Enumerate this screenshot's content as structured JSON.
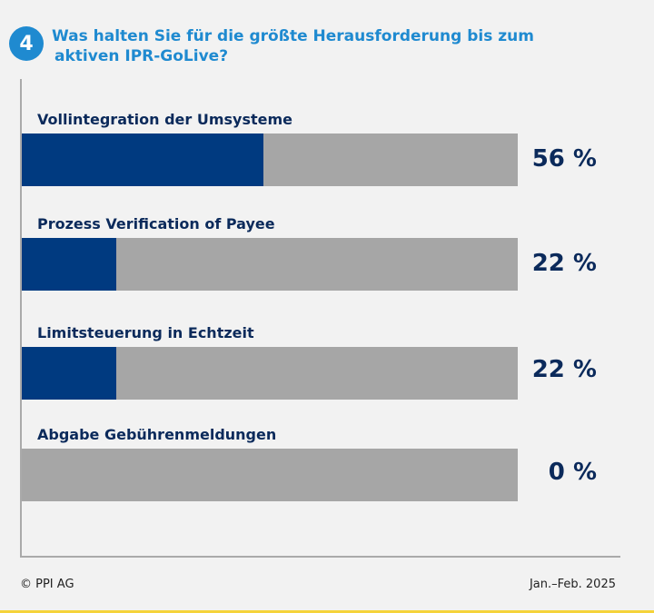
{
  "header": {
    "number": "4",
    "question_line1": "Was halten Sie für die größte Herausforderung bis zum",
    "question_line2": "aktiven IPR-GoLive?"
  },
  "chart_data": {
    "type": "bar",
    "orientation": "horizontal",
    "categories": [
      "Vollintegration der Umsysteme",
      "Prozess Verification of Payee",
      "Limitsteuerung in Echtzeit",
      "Abgabe Gebührenmeldungen"
    ],
    "values": [
      56,
      22,
      22,
      0
    ],
    "value_labels": [
      "56 %",
      "22 %",
      "22 %",
      "0 %"
    ],
    "xlim": [
      0,
      115
    ],
    "colors": {
      "fill": "#003a80",
      "track": "#a6a6a6",
      "title": "#1f8ad0",
      "label": "#0b2a5b"
    }
  },
  "footer": {
    "copyright": "© PPI AG",
    "period": "Jan.–Feb. 2025"
  }
}
